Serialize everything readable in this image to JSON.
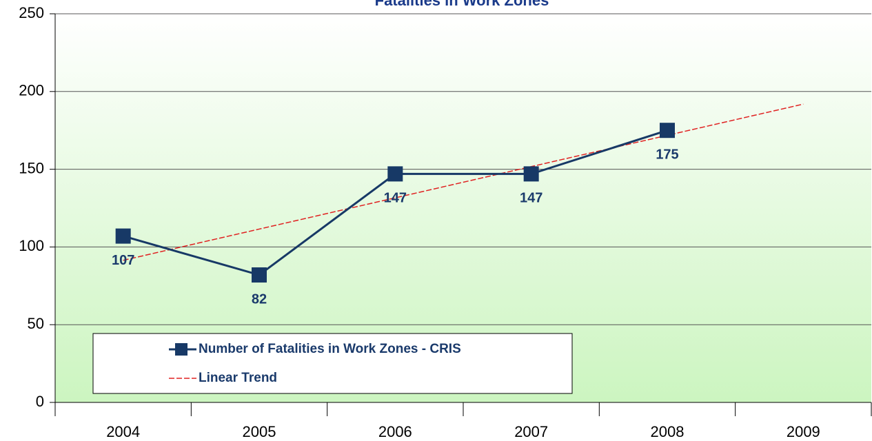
{
  "chart_data": {
    "type": "line",
    "title": "Fatalities in Work Zones",
    "categories": [
      "2004",
      "2005",
      "2006",
      "2007",
      "2008",
      "2009"
    ],
    "series": [
      {
        "name": "Number of Fatalities in Work Zones - CRIS",
        "color": "#173966",
        "values": [
          107,
          82,
          147,
          147,
          175,
          null
        ]
      },
      {
        "name": "Linear Trend",
        "color": "#e02020",
        "dashed": true,
        "values": [
          91.4,
          111.5,
          131.6,
          151.7,
          171.8,
          191.9
        ]
      }
    ],
    "data_labels": true,
    "ylim": [
      0,
      250
    ],
    "yticks": [
      0,
      50,
      100,
      150,
      200,
      250
    ],
    "grid": true,
    "legend": "bottom-left"
  }
}
